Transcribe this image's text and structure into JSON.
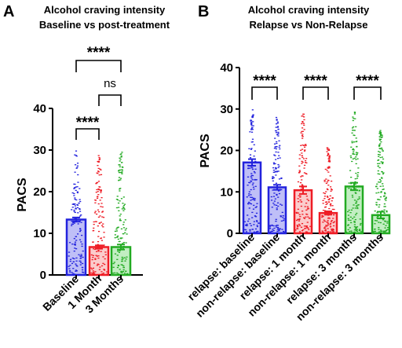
{
  "colors": {
    "blue": "#2222dd",
    "red": "#ee1c25",
    "green": "#22aa22",
    "blue_fill": "#8b8bf0",
    "red_fill": "#f7a3a3",
    "green_fill": "#90e090"
  },
  "chart_data": [
    {
      "panel": "A",
      "type": "bar",
      "title": [
        "Alcohol craving intensity",
        "Baseline vs post-treatment"
      ],
      "ylabel": "PACS",
      "ylim": [
        0,
        40
      ],
      "yticks": [
        "0",
        "10",
        "20",
        "30",
        "40"
      ],
      "categories": [
        "Baseline",
        "1 Month",
        "3 Months"
      ],
      "values": [
        13.3,
        6.7,
        6.7
      ],
      "errors": [
        0.5,
        0.4,
        0.6
      ],
      "point_max": [
        30,
        29,
        30
      ],
      "bar_colors": [
        "blue",
        "red",
        "green"
      ],
      "comparisons": [
        {
          "from": 0,
          "to": 1,
          "label": "****"
        },
        {
          "from": 1,
          "to": 2,
          "label": "ns"
        },
        {
          "from": 0,
          "to": 2,
          "label": "****"
        }
      ]
    },
    {
      "panel": "B",
      "type": "bar",
      "title": [
        "Alcohol craving intensity",
        "Relapse vs Non-Relapse"
      ],
      "ylabel": "PACS",
      "ylim": [
        0,
        40
      ],
      "yticks": [
        "0",
        "10",
        "20",
        "30",
        "40"
      ],
      "categories": [
        "relapse: baseline",
        "non-relapse: baseline",
        "relapse: 1 month",
        "non-relapse: 1 month",
        "relapse: 3 months",
        "non-relapse: 3 months"
      ],
      "values": [
        17.1,
        11.1,
        10.4,
        4.9,
        11.3,
        4.4
      ],
      "errors": [
        0.8,
        0.6,
        0.9,
        0.4,
        0.9,
        0.8
      ],
      "point_max": [
        30,
        28,
        29,
        21,
        30,
        25
      ],
      "bar_colors": [
        "blue",
        "blue",
        "red",
        "red",
        "green",
        "green"
      ],
      "comparisons": [
        {
          "from": 0,
          "to": 1,
          "label": "****"
        },
        {
          "from": 2,
          "to": 3,
          "label": "****"
        },
        {
          "from": 4,
          "to": 5,
          "label": "****"
        }
      ]
    }
  ]
}
